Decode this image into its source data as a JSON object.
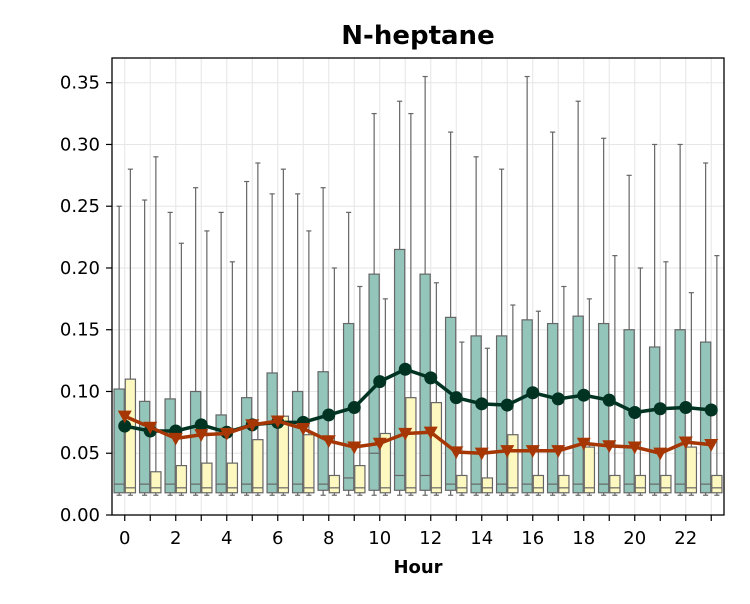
{
  "chart_data": {
    "type": "box",
    "title": "N-heptane",
    "xlabel": "Hour",
    "ylabel": "",
    "ylim": [
      0,
      0.37
    ],
    "xlim": [
      -0.5,
      23.5
    ],
    "grid": true,
    "legend": "none",
    "x_ticks": [
      0,
      2,
      4,
      6,
      8,
      10,
      12,
      14,
      16,
      18,
      20,
      22
    ],
    "y_ticks": [
      0.0,
      0.05,
      0.1,
      0.15,
      0.2,
      0.25,
      0.3,
      0.35
    ],
    "y_tick_labels": [
      "0.00",
      "0.05",
      "0.10",
      "0.15",
      "0.20",
      "0.25",
      "0.30",
      "0.35"
    ],
    "hours": [
      0,
      1,
      2,
      3,
      4,
      5,
      6,
      7,
      8,
      9,
      10,
      11,
      12,
      13,
      14,
      15,
      16,
      17,
      18,
      19,
      20,
      21,
      22,
      23
    ],
    "series": [
      {
        "kind": "box",
        "color": "#93c5bb",
        "edge_color": "#666666",
        "q1": [
          0.018,
          0.018,
          0.018,
          0.018,
          0.018,
          0.018,
          0.018,
          0.018,
          0.02,
          0.02,
          0.02,
          0.02,
          0.02,
          0.02,
          0.018,
          0.018,
          0.018,
          0.018,
          0.018,
          0.018,
          0.018,
          0.018,
          0.018,
          0.018
        ],
        "median": [
          0.025,
          0.025,
          0.025,
          0.025,
          0.025,
          0.025,
          0.025,
          0.025,
          0.025,
          0.03,
          0.05,
          0.032,
          0.032,
          0.025,
          0.025,
          0.025,
          0.025,
          0.025,
          0.025,
          0.025,
          0.025,
          0.025,
          0.025,
          0.025
        ],
        "q3": [
          0.102,
          0.092,
          0.094,
          0.1,
          0.081,
          0.095,
          0.115,
          0.1,
          0.116,
          0.155,
          0.195,
          0.215,
          0.195,
          0.16,
          0.145,
          0.145,
          0.158,
          0.155,
          0.161,
          0.155,
          0.15,
          0.136,
          0.15,
          0.14
        ],
        "whisker_low": [
          0.016,
          0.016,
          0.016,
          0.016,
          0.016,
          0.016,
          0.016,
          0.016,
          0.016,
          0.016,
          0.016,
          0.016,
          0.016,
          0.016,
          0.016,
          0.016,
          0.016,
          0.016,
          0.016,
          0.016,
          0.016,
          0.016,
          0.016,
          0.016
        ],
        "whisker_high": [
          0.25,
          0.255,
          0.245,
          0.265,
          0.245,
          0.27,
          0.26,
          0.26,
          0.265,
          0.245,
          0.325,
          0.335,
          0.355,
          0.31,
          0.29,
          0.28,
          0.355,
          0.31,
          0.335,
          0.305,
          0.275,
          0.3,
          0.3,
          0.285
        ]
      },
      {
        "kind": "box",
        "color": "#fdf8c0",
        "edge_color": "#666666",
        "q1": [
          0.018,
          0.018,
          0.018,
          0.018,
          0.018,
          0.018,
          0.018,
          0.018,
          0.018,
          0.018,
          0.018,
          0.018,
          0.018,
          0.018,
          0.018,
          0.018,
          0.018,
          0.018,
          0.018,
          0.018,
          0.018,
          0.018,
          0.018,
          0.018
        ],
        "median": [
          0.022,
          0.022,
          0.022,
          0.022,
          0.022,
          0.022,
          0.022,
          0.022,
          0.022,
          0.022,
          0.022,
          0.022,
          0.022,
          0.022,
          0.022,
          0.022,
          0.022,
          0.022,
          0.022,
          0.022,
          0.022,
          0.022,
          0.022,
          0.022
        ],
        "q3": [
          0.11,
          0.035,
          0.04,
          0.042,
          0.042,
          0.061,
          0.08,
          0.065,
          0.032,
          0.04,
          0.066,
          0.095,
          0.091,
          0.032,
          0.03,
          0.065,
          0.032,
          0.032,
          0.055,
          0.032,
          0.032,
          0.032,
          0.055,
          0.032
        ],
        "whisker_low": [
          0.016,
          0.016,
          0.016,
          0.016,
          0.016,
          0.016,
          0.016,
          0.016,
          0.016,
          0.016,
          0.016,
          0.016,
          0.016,
          0.016,
          0.016,
          0.016,
          0.016,
          0.016,
          0.016,
          0.016,
          0.016,
          0.016,
          0.016,
          0.016
        ],
        "whisker_high": [
          0.28,
          0.29,
          0.22,
          0.23,
          0.205,
          0.285,
          0.28,
          0.23,
          0.2,
          0.185,
          0.175,
          0.325,
          0.188,
          0.14,
          0.135,
          0.17,
          0.165,
          0.185,
          0.175,
          0.21,
          0.2,
          0.205,
          0.18,
          0.21
        ]
      },
      {
        "kind": "line",
        "marker": "circle",
        "color": "#003322",
        "values": [
          0.072,
          0.068,
          0.068,
          0.073,
          0.067,
          0.073,
          0.075,
          0.075,
          0.081,
          0.087,
          0.108,
          0.118,
          0.111,
          0.095,
          0.09,
          0.089,
          0.099,
          0.094,
          0.097,
          0.093,
          0.083,
          0.086,
          0.087,
          0.085
        ]
      },
      {
        "kind": "line",
        "marker": "triangle-down",
        "color": "#a63603",
        "values": [
          0.08,
          0.071,
          0.062,
          0.065,
          0.066,
          0.073,
          0.076,
          0.07,
          0.06,
          0.055,
          0.058,
          0.066,
          0.067,
          0.051,
          0.05,
          0.052,
          0.052,
          0.052,
          0.058,
          0.056,
          0.055,
          0.05,
          0.059,
          0.057
        ]
      }
    ]
  }
}
